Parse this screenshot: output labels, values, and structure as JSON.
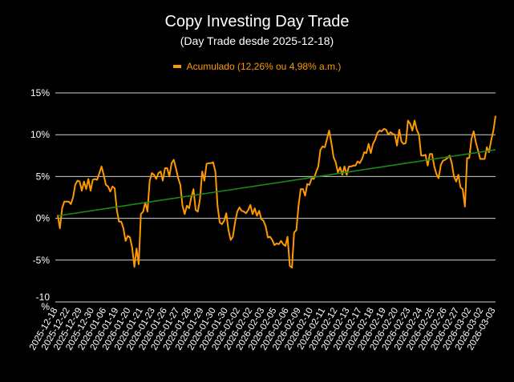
{
  "chart_data": {
    "type": "line",
    "title": "Copy Investing Day Trade",
    "subtitle": "(Day Trade desde 2025-12-18)",
    "legend": {
      "placement": "top-center",
      "label": "Acumulado (12,26% ou 4,98% a.m.)"
    },
    "ylim": [
      -10,
      15
    ],
    "y_ticks": [
      {
        "value": 15,
        "label": "15%"
      },
      {
        "value": 10,
        "label": "10%"
      },
      {
        "value": 5,
        "label": "5%"
      },
      {
        "value": 0,
        "label": "0%"
      },
      {
        "value": -5,
        "label": "-5%"
      },
      {
        "value": -10,
        "label": "-10\n%"
      }
    ],
    "grid": true,
    "x_tick_labels": [
      "2025-12-18",
      "2025-12-22",
      "2025-12-29",
      "2025-12-30",
      "2026-01-06",
      "2026-01-19",
      "2026-01-20",
      "2026-01-21",
      "2026-01-23",
      "2026-01-26",
      "2026-01-27",
      "2026-01-28",
      "2026-01-29",
      "2026-01-30",
      "2026-01-30",
      "2026-02-02",
      "2026-02-02",
      "2026-02-03",
      "2026-02-05",
      "2026-02-06",
      "2026-02-09",
      "2026-02-10",
      "2026-02-11",
      "2026-02-12",
      "2026-02-13",
      "2026-02-17",
      "2026-02-18",
      "2026-02-19",
      "2026-02-20",
      "2026-02-23",
      "2026-02-24",
      "2026-02-25",
      "2026-02-26",
      "2026-02-27",
      "2026-03-02",
      "2026-03-02",
      "2026-03-03"
    ],
    "series": [
      {
        "name": "Acumulado (12,26% ou 4,98% a.m.)",
        "color": "#ff9900",
        "values": [
          0.4,
          -1.2,
          1.2,
          2.0,
          2.0,
          2.0,
          1.7,
          2.5,
          4.0,
          4.5,
          4.4,
          3.3,
          4.4,
          3.5,
          4.7,
          3.3,
          4.6,
          4.7,
          4.6,
          5.4,
          6.2,
          5.2,
          4.0,
          3.8,
          3.2,
          3.8,
          3.6,
          1.0,
          -0.4,
          -0.4,
          -1.2,
          -2.7,
          -2.1,
          -2.3,
          -3.5,
          -5.8,
          -3.6,
          -5.5,
          0.5,
          0.8,
          1.9,
          0.8,
          4.5,
          5.4,
          5.2,
          4.7,
          5.4,
          5.6,
          4.5,
          6.0,
          6.0,
          5.0,
          6.6,
          7.0,
          6.0,
          4.8,
          4.0,
          1.5,
          0.5,
          1.5,
          1.2,
          2.5,
          3.5,
          1.0,
          0.8,
          2.3,
          5.6,
          4.5,
          6.5,
          6.6,
          6.6,
          6.7,
          5.6,
          1.5,
          -0.5,
          -0.7,
          -0.3,
          0.6,
          -1.4,
          -2.6,
          -2.2,
          -0.5,
          0.8,
          1.3,
          0.9,
          0.8,
          0.6,
          1.0,
          1.6,
          0.5,
          1.2,
          0.3,
          0.9,
          -0.1,
          -0.3,
          -1.0,
          -2.3,
          -2.2,
          -2.6,
          -3.2,
          -3.0,
          -3.1,
          -2.7,
          -3.1,
          -3.3,
          -2.2,
          -5.7,
          -5.9,
          -1.7,
          -1.4,
          1.5,
          3.5,
          3.5,
          2.7,
          4.1,
          4.0,
          4.8,
          4.7,
          5.5,
          6.2,
          8.2,
          8.6,
          8.5,
          9.5,
          10.5,
          9.0,
          7.3,
          6.7,
          5.5,
          6.1,
          5.2,
          6.2,
          5.2,
          6.2,
          6.2,
          6.3,
          6.3,
          6.8,
          6.6,
          7.1,
          7.9,
          7.8,
          8.9,
          7.8,
          8.9,
          9.4,
          10.2,
          10.5,
          10.4,
          10.7,
          10.6,
          10.0,
          10.3,
          10.1,
          10.0,
          8.7,
          10.6,
          9.2,
          8.9,
          9.0,
          11.7,
          11.3,
          10.5,
          11.7,
          10.6,
          10.0,
          7.5,
          7.5,
          7.6,
          6.3,
          7.7,
          7.7,
          6.2,
          5.3,
          4.8,
          6.4,
          6.9,
          7.0,
          7.2,
          7.5,
          6.6,
          5.0,
          4.4,
          5.2,
          3.7,
          3.5,
          1.4,
          7.2,
          7.2,
          9.5,
          10.4,
          9.1,
          8.1,
          7.1,
          7.1,
          7.1,
          8.5,
          7.9,
          9.3,
          10.5,
          12.26
        ]
      },
      {
        "name": "",
        "color": "#1a8a1a",
        "values": [
          0.3,
          8.2
        ]
      }
    ]
  }
}
